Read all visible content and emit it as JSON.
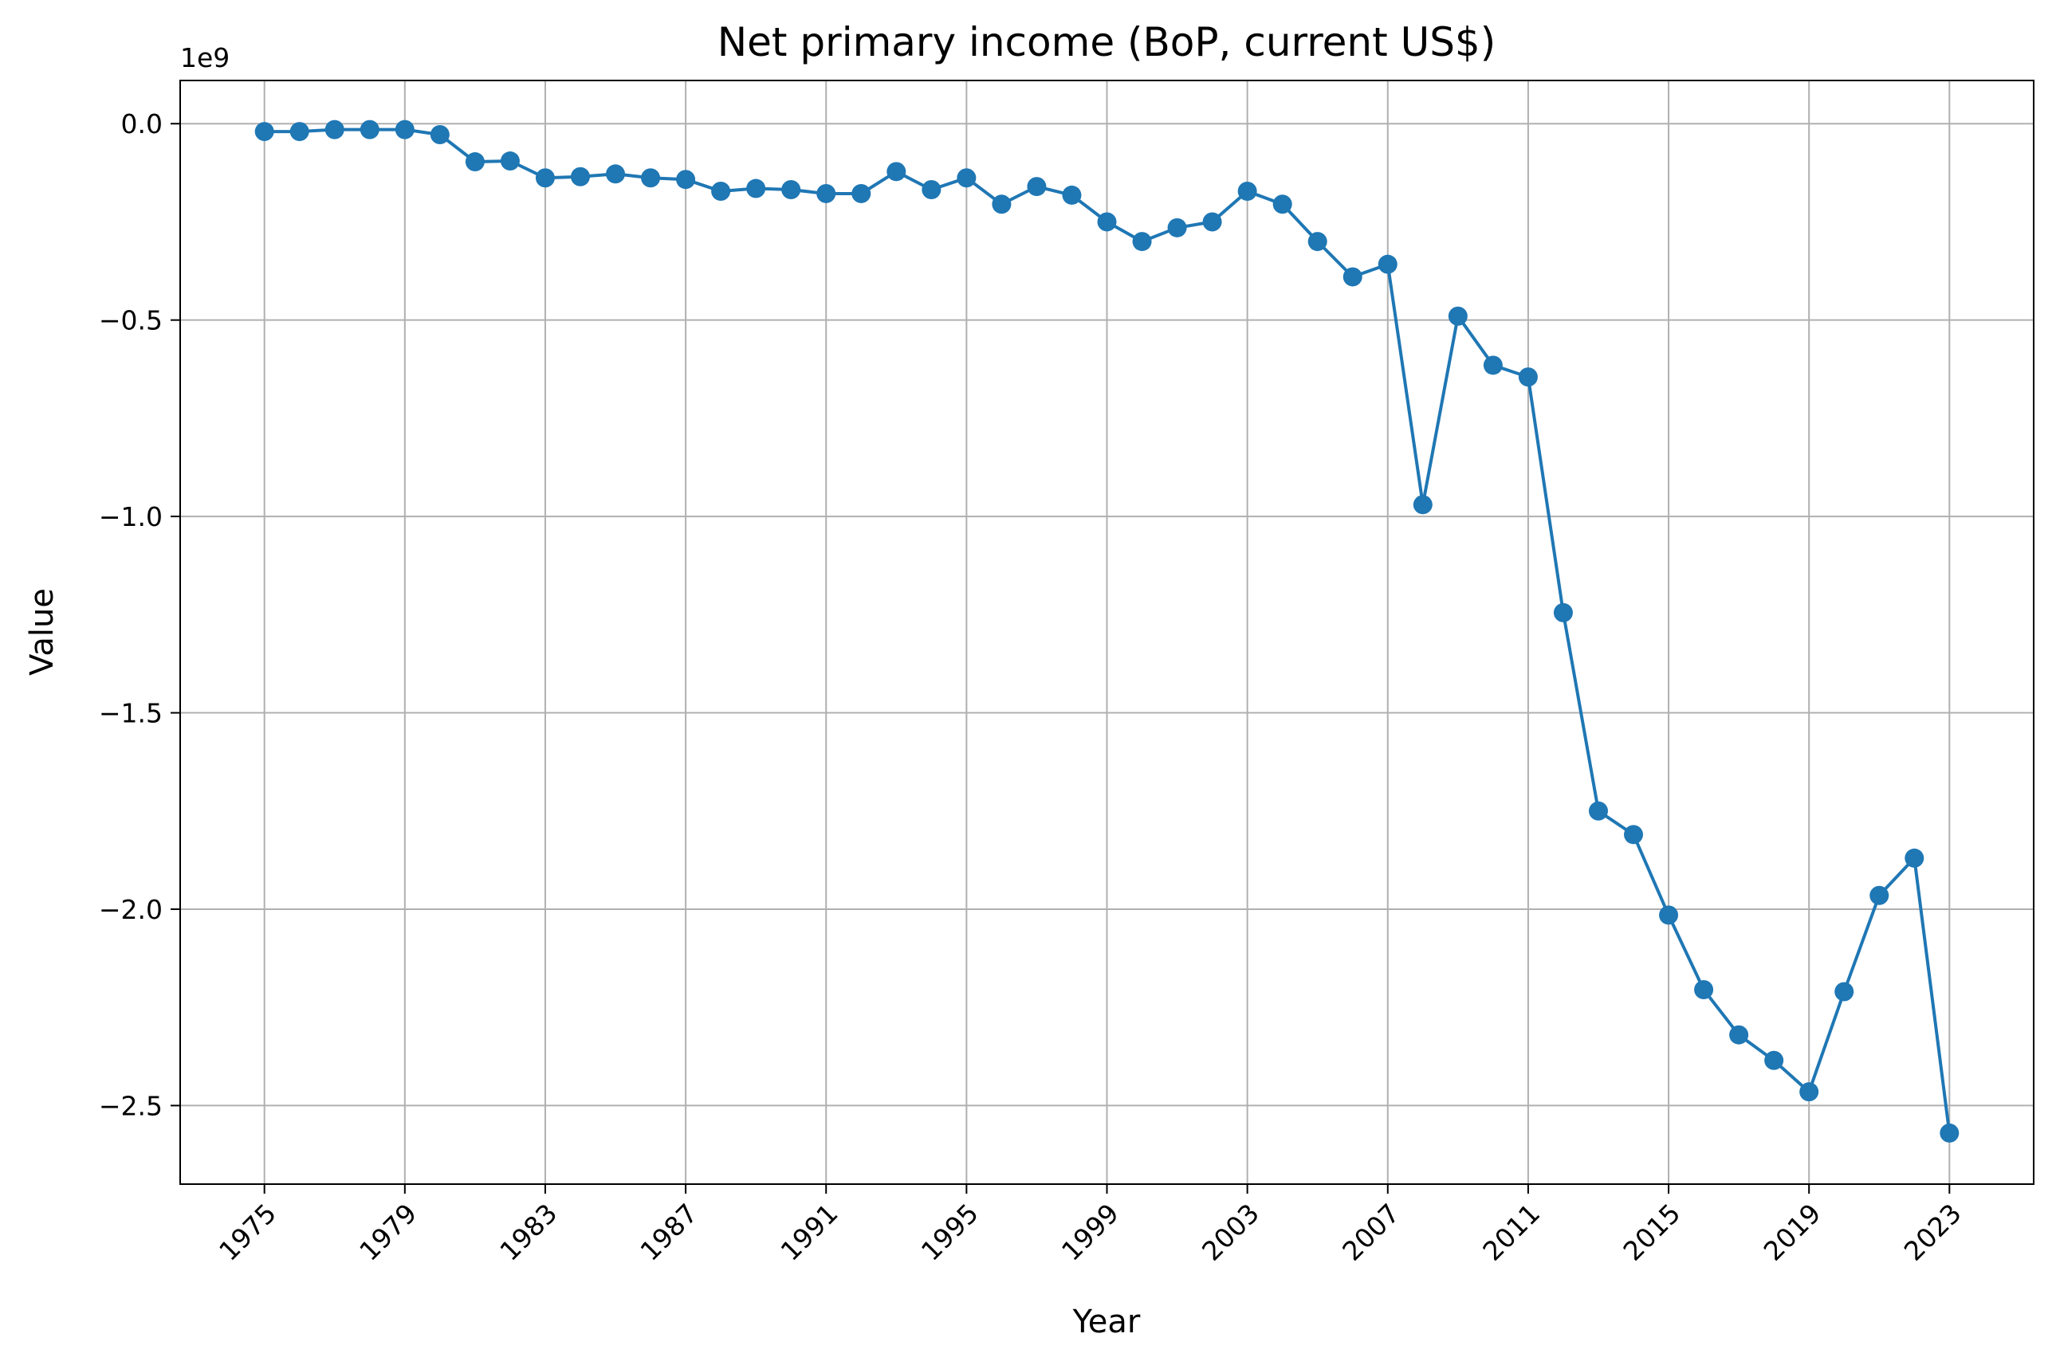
{
  "chart_data": {
    "type": "line",
    "title": "Net primary income (BoP, current US$)",
    "xlabel": "Year",
    "ylabel": "Value",
    "y_offset_label": "1e9",
    "xlim": [
      1972.6,
      2025.4
    ],
    "ylim": [
      -2.7,
      0.11
    ],
    "x_ticks": [
      1975,
      1979,
      1983,
      1987,
      1991,
      1995,
      1999,
      2003,
      2007,
      2011,
      2015,
      2019,
      2023
    ],
    "x_tick_labels": [
      "1975",
      "1979",
      "1983",
      "1987",
      "1991",
      "1995",
      "1999",
      "2003",
      "2007",
      "2011",
      "2015",
      "2019",
      "2023"
    ],
    "y_ticks": [
      0.0,
      -0.5,
      -1.0,
      -1.5,
      -2.0,
      -2.5
    ],
    "y_tick_labels": [
      "0.0",
      "−0.5",
      "−1.0",
      "−1.5",
      "−2.0",
      "−2.5"
    ],
    "grid": true,
    "legend": "none",
    "series_color": "#1f77b4",
    "grid_color": "#b0b0b0",
    "series": [
      {
        "x": [
          1975,
          1976,
          1977,
          1978,
          1979,
          1980,
          1981,
          1982,
          1983,
          1984,
          1985,
          1986,
          1987,
          1988,
          1989,
          1990,
          1991,
          1992,
          1993,
          1994,
          1995,
          1996,
          1997,
          1998,
          1999,
          2000,
          2001,
          2002,
          2003,
          2004,
          2005,
          2006,
          2007,
          2008,
          2009,
          2010,
          2011,
          2012,
          2013,
          2014,
          2015,
          2016,
          2017,
          2018,
          2019,
          2020,
          2021,
          2022,
          2023
        ],
        "values": [
          -0.02,
          -0.02,
          -0.015,
          -0.015,
          -0.015,
          -0.028,
          -0.097,
          -0.095,
          -0.138,
          -0.135,
          -0.128,
          -0.138,
          -0.142,
          -0.172,
          -0.165,
          -0.168,
          -0.178,
          -0.178,
          -0.122,
          -0.168,
          -0.138,
          -0.205,
          -0.16,
          -0.182,
          -0.25,
          -0.3,
          -0.265,
          -0.25,
          -0.172,
          -0.205,
          -0.3,
          -0.39,
          -0.358,
          -0.97,
          -0.49,
          -0.615,
          -0.645,
          -1.245,
          -1.75,
          -1.81,
          -2.015,
          -2.205,
          -2.32,
          -2.385,
          -2.465,
          -2.21,
          -1.965,
          -1.87,
          -2.57
        ]
      }
    ]
  }
}
